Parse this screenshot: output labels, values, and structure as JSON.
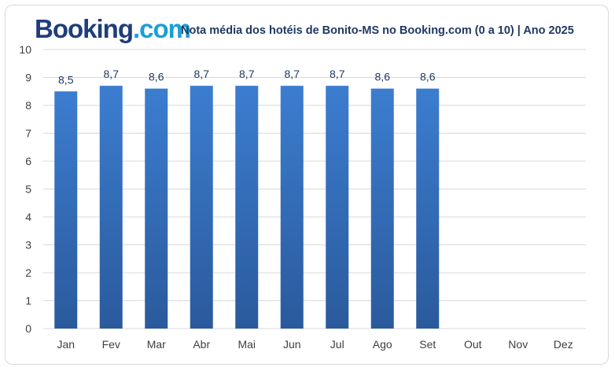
{
  "logo": {
    "brand": "Booking",
    "tld": ".com"
  },
  "chart_data": {
    "type": "bar",
    "title": "Nota média dos hotéis de Bonito-MS no Booking.com (0 a 10) | Ano 2025",
    "categories": [
      "Jan",
      "Fev",
      "Mar",
      "Abr",
      "Mai",
      "Jun",
      "Jul",
      "Ago",
      "Set",
      "Out",
      "Nov",
      "Dez"
    ],
    "values": [
      8.5,
      8.7,
      8.6,
      8.7,
      8.7,
      8.7,
      8.7,
      8.6,
      8.6,
      null,
      null,
      null
    ],
    "data_labels": [
      "8,5",
      "8,7",
      "8,6",
      "8,7",
      "8,7",
      "8,7",
      "8,7",
      "8,6",
      "8,6",
      "",
      "",
      ""
    ],
    "yticks": [
      "0",
      "1",
      "2",
      "3",
      "4",
      "5",
      "6",
      "7",
      "8",
      "9",
      "10"
    ],
    "ylim": [
      0,
      10
    ],
    "grid": true,
    "legend": "none",
    "colors": {
      "bar_top": "#3c7dd0",
      "bar_bottom": "#2a5a9c",
      "grid": "#d9d9d9"
    }
  }
}
